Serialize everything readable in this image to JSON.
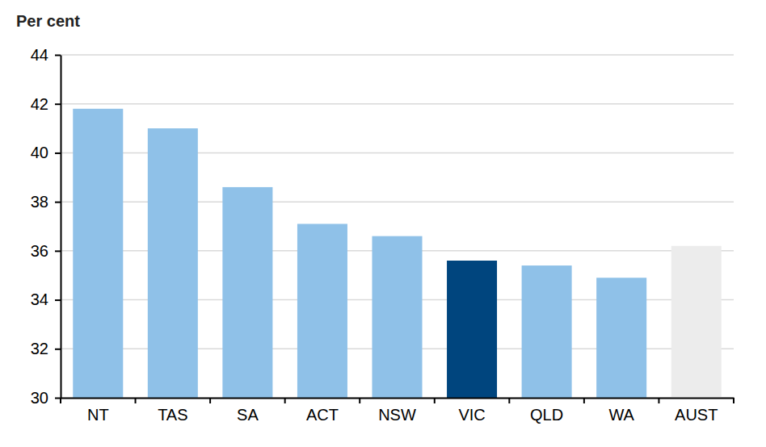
{
  "chart_data": {
    "type": "bar",
    "y_label": "Per cent",
    "categories": [
      "NT",
      "TAS",
      "SA",
      "ACT",
      "NSW",
      "VIC",
      "QLD",
      "WA",
      "AUST"
    ],
    "values": [
      41.8,
      41.0,
      38.6,
      37.1,
      36.6,
      35.6,
      35.4,
      34.9,
      36.2
    ],
    "colors": [
      "#8fc1e8",
      "#8fc1e8",
      "#8fc1e8",
      "#8fc1e8",
      "#8fc1e8",
      "#00457e",
      "#8fc1e8",
      "#8fc1e8",
      "#ececec"
    ],
    "ylim": [
      30,
      44
    ],
    "yticks": [
      30,
      32,
      34,
      36,
      38,
      40,
      42,
      44
    ],
    "grid": true
  }
}
